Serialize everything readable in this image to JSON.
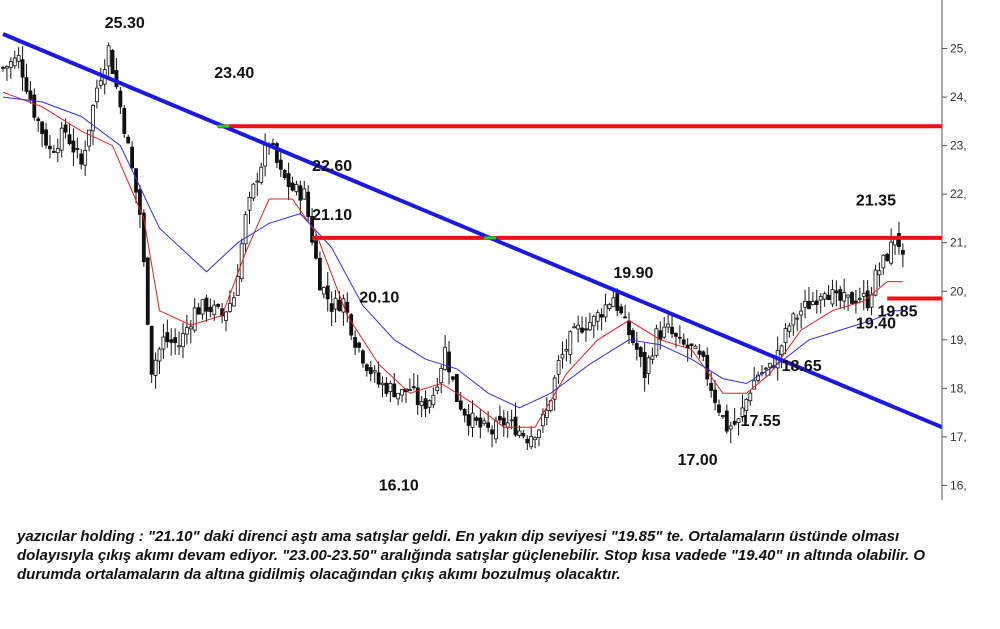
{
  "chart_data": {
    "type": "candlestick",
    "title": "",
    "xlabel": "",
    "ylabel": "",
    "ylim": [
      15.7,
      26.0
    ],
    "grid": false,
    "yticks": [
      {
        "value": 25,
        "label": "25,"
      },
      {
        "value": 24,
        "label": "24,"
      },
      {
        "value": 23,
        "label": "23,"
      },
      {
        "value": 22,
        "label": "22,"
      },
      {
        "value": 21,
        "label": "21,"
      },
      {
        "value": 20,
        "label": "20,"
      },
      {
        "value": 19,
        "label": "19,"
      },
      {
        "value": 18,
        "label": "18,"
      },
      {
        "value": 17,
        "label": "17,"
      },
      {
        "value": 16,
        "label": "16,"
      }
    ],
    "price_path": [
      [
        0,
        24.6
      ],
      [
        4,
        24.8
      ],
      [
        8,
        23.7
      ],
      [
        12,
        22.9
      ],
      [
        16,
        23.3
      ],
      [
        20,
        22.6
      ],
      [
        24,
        24.2
      ],
      [
        27,
        25.0
      ],
      [
        31,
        23.4
      ],
      [
        35,
        21.6
      ],
      [
        38,
        18.4
      ],
      [
        41,
        19.0
      ],
      [
        45,
        18.9
      ],
      [
        49,
        19.6
      ],
      [
        52,
        19.7
      ],
      [
        56,
        19.5
      ],
      [
        59,
        19.9
      ],
      [
        62,
        21.5
      ],
      [
        65,
        22.4
      ],
      [
        68,
        23.1
      ],
      [
        71,
        22.4
      ],
      [
        74,
        22.1
      ],
      [
        77,
        22.0
      ],
      [
        79,
        21.1
      ],
      [
        81,
        20.2
      ],
      [
        84,
        19.7
      ],
      [
        87,
        19.8
      ],
      [
        90,
        19.0
      ],
      [
        93,
        18.5
      ],
      [
        96,
        18.1
      ],
      [
        99,
        18.0
      ],
      [
        102,
        17.9
      ],
      [
        104,
        18.0
      ],
      [
        107,
        17.6
      ],
      [
        110,
        17.9
      ],
      [
        113,
        18.8
      ],
      [
        116,
        17.8
      ],
      [
        119,
        17.4
      ],
      [
        122,
        17.2
      ],
      [
        125,
        17.1
      ],
      [
        128,
        17.3
      ],
      [
        131,
        17.2
      ],
      [
        134,
        17.0
      ],
      [
        137,
        17.2
      ],
      [
        139,
        17.5
      ],
      [
        142,
        18.5
      ],
      [
        145,
        19.0
      ],
      [
        148,
        19.3
      ],
      [
        151,
        19.4
      ],
      [
        154,
        19.7
      ],
      [
        156,
        19.9
      ],
      [
        159,
        19.3
      ],
      [
        162,
        18.8
      ],
      [
        164,
        18.3
      ],
      [
        167,
        19.1
      ],
      [
        170,
        19.2
      ],
      [
        173,
        18.9
      ],
      [
        176,
        18.8
      ],
      [
        179,
        18.5
      ],
      [
        182,
        17.8
      ],
      [
        185,
        17.2
      ],
      [
        188,
        17.3
      ],
      [
        191,
        18.0
      ],
      [
        193,
        18.3
      ],
      [
        196,
        18.4
      ],
      [
        198,
        18.7
      ],
      [
        201,
        19.3
      ],
      [
        204,
        19.6
      ],
      [
        207,
        19.8
      ],
      [
        210,
        20.1
      ],
      [
        213,
        19.8
      ],
      [
        216,
        19.8
      ],
      [
        219,
        19.9
      ],
      [
        221,
        19.8
      ],
      [
        223,
        20.3
      ],
      [
        225,
        20.6
      ],
      [
        227,
        20.9
      ],
      [
        228,
        21.2
      ],
      [
        229,
        21.0
      ],
      [
        230,
        20.6
      ]
    ],
    "moving_averages": [
      {
        "color": "#e02020",
        "values": [
          [
            0,
            24.1
          ],
          [
            10,
            23.8
          ],
          [
            20,
            23.3
          ],
          [
            28,
            23.0
          ],
          [
            36,
            21.5
          ],
          [
            40,
            19.6
          ],
          [
            48,
            19.3
          ],
          [
            56,
            19.5
          ],
          [
            62,
            20.8
          ],
          [
            68,
            21.9
          ],
          [
            74,
            21.9
          ],
          [
            80,
            21.2
          ],
          [
            88,
            19.5
          ],
          [
            96,
            18.5
          ],
          [
            104,
            17.9
          ],
          [
            112,
            18.1
          ],
          [
            120,
            17.7
          ],
          [
            128,
            17.2
          ],
          [
            136,
            17.2
          ],
          [
            144,
            18.3
          ],
          [
            152,
            19.0
          ],
          [
            160,
            19.4
          ],
          [
            168,
            19.0
          ],
          [
            176,
            18.8
          ],
          [
            184,
            17.9
          ],
          [
            190,
            17.9
          ],
          [
            196,
            18.3
          ],
          [
            204,
            19.2
          ],
          [
            212,
            19.6
          ],
          [
            220,
            19.8
          ],
          [
            226,
            20.2
          ],
          [
            230,
            20.2
          ]
        ]
      },
      {
        "color": "#3030e0",
        "values": [
          [
            0,
            24.0
          ],
          [
            10,
            23.9
          ],
          [
            20,
            23.6
          ],
          [
            30,
            23.0
          ],
          [
            40,
            21.3
          ],
          [
            52,
            20.4
          ],
          [
            60,
            21.0
          ],
          [
            68,
            21.4
          ],
          [
            76,
            21.6
          ],
          [
            84,
            20.9
          ],
          [
            92,
            19.7
          ],
          [
            100,
            19.0
          ],
          [
            108,
            18.6
          ],
          [
            116,
            18.4
          ],
          [
            124,
            17.9
          ],
          [
            132,
            17.6
          ],
          [
            140,
            17.9
          ],
          [
            150,
            18.5
          ],
          [
            160,
            19.0
          ],
          [
            168,
            18.9
          ],
          [
            176,
            18.6
          ],
          [
            184,
            18.2
          ],
          [
            190,
            18.1
          ],
          [
            198,
            18.5
          ],
          [
            206,
            19.0
          ],
          [
            214,
            19.2
          ],
          [
            222,
            19.4
          ],
          [
            228,
            19.6
          ],
          [
            230,
            19.6
          ]
        ]
      }
    ],
    "trendline": {
      "color": "#1a1adc",
      "from": [
        0,
        25.3
      ],
      "to": [
        240,
        17.2
      ]
    },
    "horizontal_levels": [
      {
        "value": 23.4,
        "x_start": 55,
        "x_end": 240,
        "color": "#ee1111"
      },
      {
        "value": 21.1,
        "x_start": 79,
        "x_end": 240,
        "color": "#ee1111"
      },
      {
        "value": 19.85,
        "x_start": 226,
        "x_end": 240,
        "color": "#ee1111"
      }
    ],
    "annotations": [
      {
        "text": "25.30",
        "x": 26,
        "y": 25.3
      },
      {
        "text": "23.40",
        "x": 54,
        "y": 23.4
      },
      {
        "text": "22.60",
        "x": 79,
        "y": 22.6
      },
      {
        "text": "21.10",
        "x": 79,
        "y": 21.1
      },
      {
        "text": "20.10",
        "x": 89,
        "y": 20.1
      },
      {
        "text": "19.90",
        "x": 156,
        "y": 19.9
      },
      {
        "text": "21.35",
        "x": 218,
        "y": 21.35
      },
      {
        "text": "19.85",
        "x": 223,
        "y": 19.85
      },
      {
        "text": "19.40",
        "x": 218,
        "y": 19.4
      },
      {
        "text": "18.65",
        "x": 199,
        "y": 18.65
      },
      {
        "text": "17.55",
        "x": 188,
        "y": 17.55
      },
      {
        "text": "17.00",
        "x": 176,
        "y": 17.0
      },
      {
        "text": "16.10",
        "x": 94,
        "y": 16.1
      }
    ]
  },
  "commentary": "yazıcılar holding : \"21.10\" daki direnci aştı ama satışlar geldi. En yakın dip seviyesi \"19.85\" te. Ortalamaların üstünde olması dolayısıyla çıkış akımı devam ediyor. \"23.00-23.50\" aralığında satışlar güçlenebilir. Stop kısa vadede \"19.40\" ın altında olabilir. O durumda ortalamaların da altına gidilmiş olacağından çıkış akımı bozulmuş olacaktır.",
  "colors": {
    "axis": "#555555",
    "candle": "#111111",
    "intersection": "#22cc22"
  }
}
